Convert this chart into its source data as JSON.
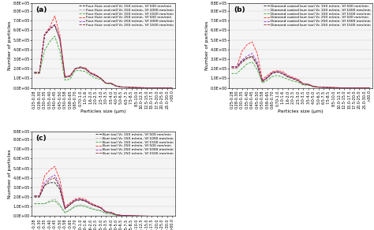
{
  "x_labels": [
    "0.25-0.28",
    "0.28-0.30",
    "0.30-0.35",
    "0.35-0.40",
    "0.40-0.45",
    "0.45-0.50",
    "0.50-0.58",
    "0.58-0.65",
    "0.65-0.70",
    "0.70-1.0",
    "1.0-1.6",
    "1.6-2.0",
    "2.0-2.5",
    "2.5-3.0",
    "3.0-3.5",
    "3.5-4.0",
    "4.0-5.0",
    "5.0-6.5",
    "6.5-7.5",
    "7.5-8.5",
    "8.5-10.0",
    "10.0-12.5",
    "12.5-15.0",
    "15.0-17.5",
    "17.5-20.0",
    "20.0-25.0",
    "25.0-30.0",
    ">30.0"
  ],
  "ylabel": "Number of particles",
  "xlabel": "Particles size (μm)",
  "ylim": [
    0,
    880000.0
  ],
  "yticks": [
    0,
    100000.0,
    200000.0,
    300000.0,
    400000.0,
    500000.0,
    600000.0,
    700000.0,
    800000.0,
    880000.0
  ],
  "ytick_labels": [
    "0.0E+00",
    "1.0E+05",
    "2.0E+05",
    "3.0E+05",
    "4.0E+05",
    "5.0E+05",
    "6.0E+05",
    "7.0E+05",
    "8.0E+05",
    "8.8E+05"
  ],
  "panel_a_label": "(a)",
  "panel_b_label": "(b)",
  "panel_c_label": "(c)",
  "legend_a": [
    "Four flute end mill Vc 150 m/min- Vf 500 mm/min",
    "Four flute end mill Vc 150 m/min- Vf 1000 mm/min",
    "Four flute end mill Vc 150 m/min- Vf 1500 mm/min",
    "Four flute end mill Vc 250 m/min- Vf 500 mm/min",
    "Four flute end mill Vc 250 m/min- Vf 1000 mm/min",
    "Four flute end mill Vc 250 m/min- Vf 1500 mm/min"
  ],
  "legend_b": [
    "Diamond coated burr tool Vc 150 m/min- Vf 500 mm/min",
    "Diamond coated burr tool Vc 150 m/min- Vf 1000 mm/min",
    "Diamond coated burr tool Vc 150 m/min- Vf 1500 mm/min",
    "Diamond coated burr tool Vc 250 m/min- Vf 500 mm/min",
    "Diamond coated burr tool Vc 250 m/min- Vf 1000 mm/min",
    "Diamond coated burr tool Vc 250 m/min- Vf 1500 mm/min"
  ],
  "legend_c": [
    "Burr tool Vc 150 m/min- Vf 500 mm/min",
    "Burr tool Vc 150 m/min- Vf 1000 mm/min",
    "Burr tool Vc 150 m/min- Vf 1500 mm/min",
    "Burr tool Vc 250 m/min- Vf 500 mm/min",
    "Burr tool Vc 250 m/min- Vf 1000 mm/min",
    "Burr tool Vc 250 m/min- Vf 1500 mm/min"
  ],
  "data_a": [
    [
      160000.0,
      160000.0,
      550000.0,
      610000.0,
      650000.0,
      500000.0,
      110000.0,
      120000.0,
      200000.0,
      220000.0,
      200000.0,
      150000.0,
      130000.0,
      100000.0,
      50000.0,
      50000.0,
      20000.0,
      10000.0,
      8000.0,
      5000.0,
      3000.0,
      2000.0,
      1000.0,
      500.0,
      300.0,
      200.0,
      100.0,
      50.0
    ],
    [
      160000.0,
      160000.0,
      550000.0,
      610000.0,
      650000.0,
      500000.0,
      110000.0,
      120000.0,
      200000.0,
      210000.0,
      190000.0,
      150000.0,
      120000.0,
      100000.0,
      50000.0,
      45000.0,
      20000.0,
      10000.0,
      7000.0,
      5000.0,
      3000.0,
      2000.0,
      1000.0,
      500.0,
      300.0,
      200.0,
      100.0,
      50.0
    ],
    [
      150000.0,
      150000.0,
      390000.0,
      480000.0,
      540000.0,
      380000.0,
      80000.0,
      90000.0,
      180000.0,
      180000.0,
      170000.0,
      130000.0,
      100000.0,
      90000.0,
      45000.0,
      40000.0,
      18000.0,
      9000.0,
      6000.0,
      4500.0,
      2500.0,
      1500.0,
      900.0,
      450.0,
      250.0,
      150.0,
      80.0,
      40.0
    ],
    [
      160000.0,
      160000.0,
      560000.0,
      630000.0,
      750000.0,
      550000.0,
      120000.0,
      130000.0,
      200000.0,
      210000.0,
      210000.0,
      160000.0,
      140000.0,
      100000.0,
      50000.0,
      50000.0,
      20000.0,
      10000.0,
      8000.0,
      5000.0,
      3000.0,
      2000.0,
      1000.0,
      500.0,
      300.0,
      200.0,
      100.0,
      50.0
    ],
    [
      160000.0,
      160000.0,
      560000.0,
      620000.0,
      660000.0,
      520000.0,
      115000.0,
      125000.0,
      200000.0,
      210000.0,
      200000.0,
      155000.0,
      130000.0,
      100000.0,
      50000.0,
      48000.0,
      20000.0,
      10000.0,
      7500.0,
      5000.0,
      3000.0,
      2000.0,
      1000.0,
      500.0,
      300.0,
      200.0,
      100.0,
      50.0
    ],
    [
      160000.0,
      160000.0,
      550000.0,
      610000.0,
      660000.0,
      510000.0,
      110000.0,
      120000.0,
      200000.0,
      210000.0,
      200000.0,
      150000.0,
      130000.0,
      100000.0,
      50000.0,
      48000.0,
      20000.0,
      10000.0,
      7500.0,
      5000.0,
      3000.0,
      2000.0,
      1000.0,
      500.0,
      300.0,
      200.0,
      100.0,
      50.0
    ]
  ],
  "data_b": [
    [
      220000.0,
      220000.0,
      280000.0,
      310000.0,
      330000.0,
      250000.0,
      70000.0,
      110000.0,
      160000.0,
      170000.0,
      150000.0,
      120000.0,
      100000.0,
      80000.0,
      40000.0,
      35000.0,
      15000.0,
      8000.0,
      6000.0,
      4000.0,
      2500.0,
      1500.0,
      800.0,
      400.0,
      250.0,
      150.0,
      80.0,
      40.0
    ],
    [
      200000.0,
      200000.0,
      260000.0,
      300000.0,
      320000.0,
      230000.0,
      60000.0,
      100000.0,
      150000.0,
      160000.0,
      140000.0,
      110000.0,
      90000.0,
      70000.0,
      38000.0,
      33000.0,
      14000.0,
      7500.0,
      5500.0,
      3800.0,
      2300.0,
      1400.0,
      750.0,
      380.0,
      230.0,
      140.0,
      75.0,
      38.0
    ],
    [
      150000.0,
      150000.0,
      200000.0,
      250000.0,
      270000.0,
      190000.0,
      50000.0,
      80000.0,
      120000.0,
      130000.0,
      110000.0,
      90000.0,
      70000.0,
      60000.0,
      30000.0,
      27000.0,
      11000.0,
      6000.0,
      4500.0,
      3000.0,
      1900.0,
      1100.0,
      600.0,
      300.0,
      190.0,
      110.0,
      60.0,
      30.0
    ],
    [
      220000.0,
      220000.0,
      380000.0,
      450000.0,
      480000.0,
      360000.0,
      90000.0,
      130000.0,
      170000.0,
      180000.0,
      170000.0,
      130000.0,
      110000.0,
      90000.0,
      45000.0,
      40000.0,
      17000.0,
      9000.0,
      6500.0,
      4500.0,
      2800.0,
      1700.0,
      900.0,
      450.0,
      280.0,
      170.0,
      90.0,
      45.0
    ],
    [
      220000.0,
      220000.0,
      290000.0,
      330000.0,
      360000.0,
      270000.0,
      75000.0,
      115000.0,
      160000.0,
      170000.0,
      155000.0,
      120000.0,
      100000.0,
      80000.0,
      41000.0,
      36000.0,
      15500.0,
      8500.0,
      6200.0,
      4100.0,
      2600.0,
      1550.0,
      820.0,
      410.0,
      260.0,
      155.0,
      82.0,
      41.0
    ],
    [
      210000.0,
      210000.0,
      270000.0,
      310000.0,
      330000.0,
      240000.0,
      65000.0,
      105000.0,
      155000.0,
      165000.0,
      148000.0,
      115000.0,
      95000.0,
      75000.0,
      39000.0,
      34000.0,
      14500.0,
      7800.0,
      5800.0,
      3900.0,
      2450.0,
      1450.0,
      780.0,
      390.0,
      245.0,
      145.0,
      78.0,
      39.0
    ]
  ],
  "data_c": [
    [
      200000.0,
      200000.0,
      320000.0,
      350000.0,
      350000.0,
      280000.0,
      75000.0,
      120000.0,
      160000.0,
      170000.0,
      155000.0,
      125000.0,
      105000.0,
      85000.0,
      42000.0,
      37000.0,
      15500.0,
      8500.0,
      6200.0,
      4200.0,
      2600.0,
      1550.0,
      820.0,
      410.0,
      260.0,
      155.0,
      82.0,
      41.0
    ],
    [
      130000.0,
      130000.0,
      130000.0,
      160000.0,
      180000.0,
      120000.0,
      40000.0,
      70000.0,
      110000.0,
      120000.0,
      110000.0,
      90000.0,
      70000.0,
      60000.0,
      30000.0,
      27000.0,
      11000.0,
      6000.0,
      4500.0,
      3000.0,
      1900.0,
      1100.0,
      600.0,
      300.0,
      190.0,
      110.0,
      60.0,
      30.0
    ],
    [
      130000.0,
      130000.0,
      130000.0,
      150000.0,
      160000.0,
      110000.0,
      35000.0,
      65000.0,
      100000.0,
      110000.0,
      100000.0,
      80000.0,
      65000.0,
      55000.0,
      28000.0,
      25000.0,
      10000.0,
      5500.0,
      4200.0,
      2800.0,
      1750.0,
      1000.0,
      550.0,
      280.0,
      175.0,
      100.0,
      55.0,
      28.0
    ],
    [
      210000.0,
      210000.0,
      420000.0,
      480000.0,
      520000.0,
      380000.0,
      100000.0,
      140000.0,
      180000.0,
      190000.0,
      175000.0,
      140000.0,
      115000.0,
      95000.0,
      47000.0,
      42000.0,
      17500.0,
      9500.0,
      7000.0,
      4700.0,
      3000.0,
      1750.0,
      950.0,
      470.0,
      300.0,
      175.0,
      95.0,
      47.0
    ],
    [
      210000.0,
      210000.0,
      350000.0,
      400000.0,
      430000.0,
      320000.0,
      85000.0,
      130000.0,
      170000.0,
      180000.0,
      165000.0,
      130000.0,
      110000.0,
      90000.0,
      45000.0,
      40000.0,
      16500.0,
      9000.0,
      6600.0,
      4500.0,
      2800.0,
      1650.0,
      900.0,
      450.0,
      280.0,
      165.0,
      90.0,
      45.0
    ],
    [
      210000.0,
      210000.0,
      320000.0,
      380000.0,
      400000.0,
      300000.0,
      80000.0,
      125000.0,
      165000.0,
      175000.0,
      160000.0,
      127000.0,
      106000.0,
      87000.0,
      43000.0,
      38000.0,
      16000.0,
      8700.0,
      6300.0,
      4300.0,
      2700.0,
      1600.0,
      870.0,
      430.0,
      270.0,
      160.0,
      87.0,
      43.0
    ]
  ],
  "line_colors": [
    "#1a1a1a",
    "#aaaaaa",
    "#33aa33",
    "#ff2222",
    "#9933cc",
    "#882222"
  ],
  "linewidth": 0.6,
  "fontsize_label": 4.5,
  "fontsize_tick": 3.5,
  "fontsize_legend": 3.2,
  "fontsize_panel": 6.5,
  "background_color": "#f5f5f5"
}
